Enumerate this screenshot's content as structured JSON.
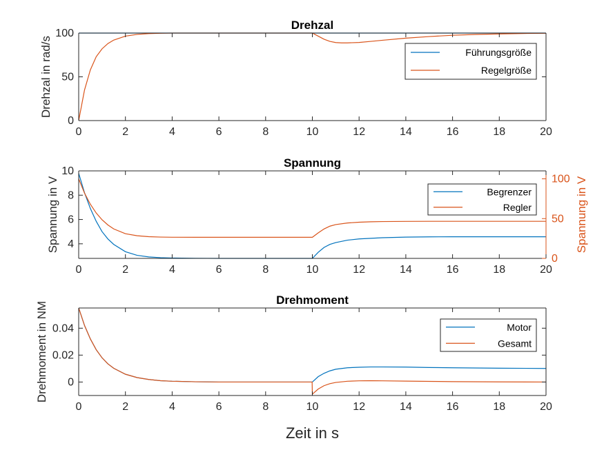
{
  "figure": {
    "xlabel": "Zeit in s"
  },
  "colors": {
    "blue": "#0072BD",
    "orange": "#D95319",
    "axis": "#262626"
  },
  "chart_data": [
    {
      "type": "line",
      "title": "Drehzal",
      "xlabel": "",
      "ylabel": "Drehzal in rad/s",
      "xlim": [
        0,
        20
      ],
      "ylim": [
        0,
        100
      ],
      "xticks": [
        0,
        2,
        4,
        6,
        8,
        10,
        12,
        14,
        16,
        18,
        20
      ],
      "yticks": [
        0,
        50,
        100
      ],
      "legend_position": "top-right",
      "series": [
        {
          "name": "Führungsgröße",
          "color": "#0072BD",
          "x": [
            0,
            20
          ],
          "y": [
            100,
            100
          ]
        },
        {
          "name": "Regelgröße",
          "color": "#D95319",
          "x": [
            0,
            0.25,
            0.5,
            0.75,
            1,
            1.25,
            1.5,
            2,
            2.5,
            3,
            3.5,
            4,
            5,
            6,
            8,
            10,
            10.25,
            10.5,
            10.75,
            11,
            11.25,
            11.5,
            12,
            12.5,
            13,
            14,
            15,
            16,
            17,
            18,
            19,
            20
          ],
          "y": [
            0,
            35,
            58,
            73,
            82,
            88,
            92,
            96.5,
            98.5,
            99.4,
            99.8,
            100,
            100,
            100,
            100,
            100,
            96.5,
            93,
            90.5,
            89.2,
            88.8,
            88.8,
            89.3,
            90.5,
            91.8,
            94.2,
            96,
            97.5,
            98.4,
            99,
            99.5,
            99.8
          ]
        }
      ]
    },
    {
      "type": "line",
      "title": "Spannung",
      "xlabel": "",
      "ylabel": "Spannung in V",
      "ylabel_right": "Spannung in V",
      "xlim": [
        0,
        20
      ],
      "ylim": [
        2.8,
        10
      ],
      "ylim_right": [
        0,
        110
      ],
      "xticks": [
        0,
        2,
        4,
        6,
        8,
        10,
        12,
        14,
        16,
        18,
        20
      ],
      "yticks": [
        4,
        6,
        8,
        10
      ],
      "yticks_right": [
        0,
        50,
        100
      ],
      "legend_position": "top-right",
      "series": [
        {
          "name": "Begrenzer",
          "color": "#0072BD",
          "axis": "left",
          "x": [
            0,
            0.25,
            0.5,
            0.75,
            1,
            1.25,
            1.5,
            2,
            2.5,
            3,
            3.5,
            4,
            5,
            6,
            8,
            10,
            10.25,
            10.5,
            10.75,
            11,
            11.5,
            12,
            12.5,
            13,
            14,
            15,
            16,
            18,
            20
          ],
          "y": [
            9.8,
            8.2,
            6.9,
            5.85,
            5.0,
            4.4,
            3.95,
            3.35,
            3.05,
            2.92,
            2.86,
            2.83,
            2.81,
            2.8,
            2.8,
            2.8,
            3.3,
            3.7,
            3.95,
            4.1,
            4.3,
            4.4,
            4.45,
            4.5,
            4.55,
            4.57,
            4.58,
            4.58,
            4.58
          ]
        },
        {
          "name": "Regler",
          "color": "#D95319",
          "axis": "right",
          "x": [
            0,
            0.25,
            0.5,
            0.75,
            1,
            1.25,
            1.5,
            2,
            2.5,
            3,
            3.5,
            4,
            5,
            6,
            8,
            10,
            10.25,
            10.5,
            10.75,
            11,
            11.5,
            12,
            12.5,
            13,
            14,
            15,
            16,
            18,
            20
          ],
          "y": [
            100,
            82,
            68,
            57,
            48.5,
            42,
            37,
            31,
            28.5,
            27.3,
            26.8,
            26.6,
            26.5,
            26.5,
            26.5,
            26.5,
            32,
            37,
            40.5,
            42.5,
            44.5,
            45.5,
            46,
            46.3,
            46.5,
            46.6,
            46.6,
            46.6,
            46.6
          ]
        }
      ]
    },
    {
      "type": "line",
      "title": "Drehmoment",
      "xlabel": "Zeit in s",
      "ylabel": "Drehmoment in NM",
      "xlim": [
        0,
        20
      ],
      "ylim": [
        -0.01,
        0.055
      ],
      "xticks": [
        0,
        2,
        4,
        6,
        8,
        10,
        12,
        14,
        16,
        18,
        20
      ],
      "yticks": [
        0,
        0.02,
        0.04
      ],
      "yticklabels": [
        "0",
        "0.02",
        "0.04"
      ],
      "legend_position": "top-right",
      "series": [
        {
          "name": "Motor",
          "color": "#0072BD",
          "x": [
            0,
            0.25,
            0.5,
            0.75,
            1,
            1.25,
            1.5,
            2,
            2.5,
            3,
            3.5,
            4,
            5,
            6,
            8,
            10,
            10.25,
            10.5,
            10.75,
            11,
            11.5,
            12,
            12.5,
            13,
            14,
            15,
            16,
            18,
            20
          ],
          "y": [
            0.055,
            0.042,
            0.032,
            0.024,
            0.018,
            0.0135,
            0.0102,
            0.0058,
            0.0033,
            0.0019,
            0.001,
            0.0006,
            0.0002,
            0,
            0,
            0,
            0.004,
            0.0065,
            0.0083,
            0.0095,
            0.0106,
            0.011,
            0.0112,
            0.0112,
            0.0111,
            0.0108,
            0.0106,
            0.0103,
            0.0101
          ]
        },
        {
          "name": "Gesamt",
          "color": "#D95319",
          "x": [
            0,
            0.25,
            0.5,
            0.75,
            1,
            1.25,
            1.5,
            2,
            2.5,
            3,
            3.5,
            4,
            5,
            6,
            8,
            9.99,
            10,
            10.25,
            10.5,
            10.75,
            11,
            11.5,
            12,
            12.5,
            13,
            14,
            15,
            16,
            18,
            20
          ],
          "y": [
            0.055,
            0.042,
            0.032,
            0.024,
            0.018,
            0.0135,
            0.0102,
            0.0058,
            0.0033,
            0.0019,
            0.001,
            0.0006,
            0.0002,
            0,
            0,
            0,
            -0.009,
            -0.0052,
            -0.0027,
            -0.0012,
            -0.0003,
            0.0006,
            0.0009,
            0.001,
            0.0009,
            0.0007,
            0.0005,
            0.0003,
            0.0001,
            0
          ]
        }
      ]
    }
  ]
}
